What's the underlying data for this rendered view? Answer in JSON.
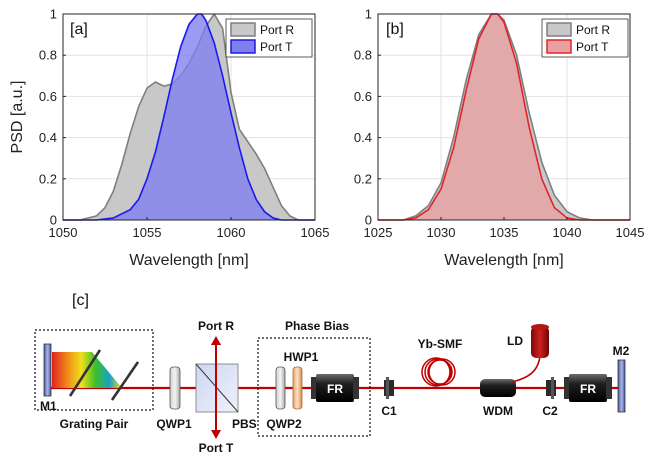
{
  "chart_data": [
    {
      "type": "area",
      "panel_label": "[a]",
      "xlabel": "Wavelength [nm]",
      "ylabel": "PSD [a.u.]",
      "xlim": [
        1050,
        1065
      ],
      "ylim": [
        0,
        1
      ],
      "xticks": [
        1050,
        1055,
        1060,
        1065
      ],
      "yticks": [
        0,
        0.2,
        0.4,
        0.6,
        0.8,
        1
      ],
      "grid": true,
      "legend_position": "top-right",
      "series": [
        {
          "name": "Port R",
          "color": "#7f7f7f",
          "fill": "#c8c8c8",
          "x": [
            1050,
            1051,
            1052,
            1052.5,
            1053,
            1053.5,
            1054,
            1054.5,
            1055,
            1055.5,
            1056,
            1056.5,
            1057,
            1057.5,
            1058,
            1058.5,
            1059,
            1059.5,
            1060,
            1060.5,
            1061,
            1061.5,
            1062,
            1062.5,
            1063,
            1063.5,
            1064,
            1064.5,
            1065
          ],
          "y": [
            0.0,
            0.0,
            0.02,
            0.06,
            0.14,
            0.27,
            0.42,
            0.55,
            0.64,
            0.67,
            0.65,
            0.66,
            0.7,
            0.76,
            0.84,
            0.94,
            1.0,
            0.93,
            0.62,
            0.44,
            0.38,
            0.32,
            0.25,
            0.16,
            0.07,
            0.02,
            0.0,
            0.0,
            0.0
          ]
        },
        {
          "name": "Port T",
          "color": "#1a1aee",
          "fill": "#7f7ff0",
          "x": [
            1050,
            1052,
            1053,
            1054,
            1054.5,
            1055,
            1055.5,
            1056,
            1056.5,
            1057,
            1057.5,
            1058,
            1058.25,
            1058.5,
            1059,
            1059.5,
            1060,
            1060.5,
            1061,
            1061.5,
            1062,
            1062.5,
            1063,
            1065
          ],
          "y": [
            0.0,
            0.0,
            0.01,
            0.05,
            0.1,
            0.2,
            0.33,
            0.5,
            0.68,
            0.84,
            0.95,
            1.0,
            1.0,
            0.97,
            0.86,
            0.7,
            0.52,
            0.35,
            0.2,
            0.1,
            0.04,
            0.01,
            0.0,
            0.0
          ]
        }
      ]
    },
    {
      "type": "area",
      "panel_label": "[b]",
      "xlabel": "Wavelength [nm]",
      "ylabel": "",
      "xlim": [
        1025,
        1045
      ],
      "ylim": [
        0,
        1
      ],
      "xticks": [
        1025,
        1030,
        1035,
        1040,
        1045
      ],
      "yticks": [
        0,
        0.2,
        0.4,
        0.6,
        0.8,
        1
      ],
      "grid": true,
      "legend_position": "top-right",
      "series": [
        {
          "name": "Port R",
          "color": "#7f7f7f",
          "fill": "#c8c8c8",
          "x": [
            1025,
            1027,
            1028,
            1029,
            1030,
            1031,
            1032,
            1033,
            1034,
            1034.5,
            1035,
            1036,
            1037,
            1038,
            1039,
            1040,
            1041,
            1042,
            1045
          ],
          "y": [
            0.0,
            0.0,
            0.02,
            0.07,
            0.18,
            0.4,
            0.68,
            0.9,
            1.0,
            1.0,
            0.97,
            0.8,
            0.52,
            0.28,
            0.12,
            0.04,
            0.01,
            0.0,
            0.0
          ]
        },
        {
          "name": "Port T",
          "color": "#e3242b",
          "fill": "#e9a0a3",
          "x": [
            1025,
            1027,
            1028,
            1029,
            1030,
            1031,
            1032,
            1033,
            1034,
            1034.5,
            1035,
            1036,
            1037,
            1038,
            1039,
            1040,
            1041,
            1045
          ],
          "y": [
            0.0,
            0.0,
            0.01,
            0.05,
            0.15,
            0.35,
            0.63,
            0.88,
            1.0,
            1.0,
            0.96,
            0.76,
            0.45,
            0.2,
            0.06,
            0.01,
            0.0,
            0.0
          ]
        }
      ]
    }
  ],
  "schematic": {
    "panel_label": "[c]",
    "labels": {
      "m1": "M1",
      "grating": "Grating Pair",
      "qwp1": "QWP1",
      "pbs": "PBS",
      "port_r": "Port R",
      "port_t": "Port T",
      "phase_bias": "Phase Bias",
      "hwp1": "HWP1",
      "qwp2": "QWP2",
      "fr1": "FR",
      "c1": "C1",
      "yb_smf": "Yb-SMF",
      "wdm": "WDM",
      "ld": "LD",
      "c2": "C2",
      "fr2": "FR",
      "m2": "M2"
    }
  }
}
